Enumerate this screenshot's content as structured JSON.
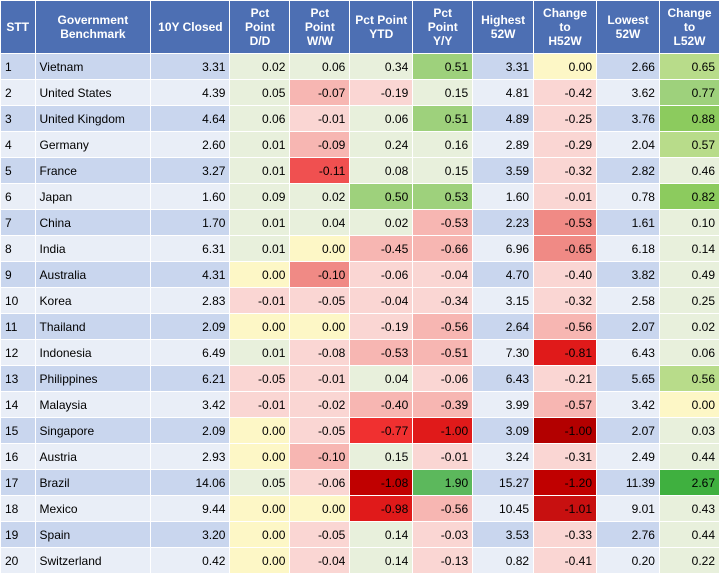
{
  "headers": [
    [
      "STT"
    ],
    [
      "Government",
      "Benchmark"
    ],
    [
      "10Y Closed"
    ],
    [
      "Pct",
      "Point",
      "D/D"
    ],
    [
      "Pct",
      "Point",
      "W/W"
    ],
    [
      "Pct Point",
      "YTD"
    ],
    [
      "Pct",
      "Point",
      "Y/Y"
    ],
    [
      "Highest",
      "52W"
    ],
    [
      "Change",
      "to",
      "H52W"
    ],
    [
      "Lowest",
      "52W"
    ],
    [
      "Change to",
      "L52W"
    ]
  ],
  "rows": [
    [
      "1",
      "Vietnam",
      "3.31",
      "0.02",
      "0.06",
      "0.34",
      "0.51",
      "3.31",
      "0.00",
      "2.66",
      "0.65"
    ],
    [
      "2",
      "United States",
      "4.39",
      "0.05",
      "-0.07",
      "-0.19",
      "0.15",
      "4.81",
      "-0.42",
      "3.62",
      "0.77"
    ],
    [
      "3",
      "United Kingdom",
      "4.64",
      "0.06",
      "-0.01",
      "0.06",
      "0.51",
      "4.89",
      "-0.25",
      "3.76",
      "0.88"
    ],
    [
      "4",
      "Germany",
      "2.60",
      "0.01",
      "-0.09",
      "0.24",
      "0.16",
      "2.89",
      "-0.29",
      "2.04",
      "0.57"
    ],
    [
      "5",
      "France",
      "3.27",
      "0.01",
      "-0.11",
      "0.08",
      "0.15",
      "3.59",
      "-0.32",
      "2.82",
      "0.46"
    ],
    [
      "6",
      "Japan",
      "1.60",
      "0.09",
      "0.02",
      "0.50",
      "0.53",
      "1.60",
      "-0.01",
      "0.78",
      "0.82"
    ],
    [
      "7",
      "China",
      "1.70",
      "0.01",
      "0.04",
      "0.02",
      "-0.53",
      "2.23",
      "-0.53",
      "1.61",
      "0.10"
    ],
    [
      "8",
      "India",
      "6.31",
      "0.01",
      "0.00",
      "-0.45",
      "-0.66",
      "6.96",
      "-0.65",
      "6.18",
      "0.14"
    ],
    [
      "9",
      "Australia",
      "4.31",
      "0.00",
      "-0.10",
      "-0.06",
      "-0.04",
      "4.70",
      "-0.40",
      "3.82",
      "0.49"
    ],
    [
      "10",
      "Korea",
      "2.83",
      "-0.01",
      "-0.05",
      "-0.04",
      "-0.34",
      "3.15",
      "-0.32",
      "2.58",
      "0.25"
    ],
    [
      "11",
      "Thailand",
      "2.09",
      "0.00",
      "0.00",
      "-0.19",
      "-0.56",
      "2.64",
      "-0.56",
      "2.07",
      "0.02"
    ],
    [
      "12",
      "Indonesia",
      "6.49",
      "0.01",
      "-0.08",
      "-0.53",
      "-0.51",
      "7.30",
      "-0.81",
      "6.43",
      "0.06"
    ],
    [
      "13",
      "Philippines",
      "6.21",
      "-0.05",
      "-0.01",
      "0.04",
      "-0.06",
      "6.43",
      "-0.21",
      "5.65",
      "0.56"
    ],
    [
      "14",
      "Malaysia",
      "3.42",
      "-0.01",
      "-0.02",
      "-0.40",
      "-0.39",
      "3.99",
      "-0.57",
      "3.42",
      "0.00"
    ],
    [
      "15",
      "Singapore",
      "2.09",
      "0.00",
      "-0.05",
      "-0.77",
      "-1.00",
      "3.09",
      "-1.00",
      "2.07",
      "0.03"
    ],
    [
      "16",
      "Austria",
      "2.93",
      "0.00",
      "-0.10",
      "0.15",
      "-0.01",
      "3.24",
      "-0.31",
      "2.49",
      "0.44"
    ],
    [
      "17",
      "Brazil",
      "14.06",
      "0.05",
      "-0.06",
      "-1.08",
      "1.90",
      "15.27",
      "-1.20",
      "11.39",
      "2.67"
    ],
    [
      "18",
      "Mexico",
      "9.44",
      "0.00",
      "0.00",
      "-0.98",
      "-0.56",
      "10.45",
      "-1.01",
      "9.01",
      "0.43"
    ],
    [
      "19",
      "Spain",
      "3.20",
      "0.00",
      "-0.05",
      "0.14",
      "-0.03",
      "3.53",
      "-0.33",
      "2.76",
      "0.44"
    ],
    [
      "20",
      "Switzerland",
      "0.42",
      "0.00",
      "-0.04",
      "0.14",
      "-0.13",
      "0.82",
      "-0.41",
      "0.20",
      "0.22"
    ]
  ],
  "cell_colors": [
    [
      "",
      "",
      "",
      "#e8f0dc",
      "#e8f0dc",
      "#e8f0dc",
      "#9ed17c",
      "",
      "#fdf7c6",
      "",
      "#b8dc8a"
    ],
    [
      "",
      "",
      "",
      "#e8f0dc",
      "#f7b6b2",
      "#fad6d3",
      "#e8f0dc",
      "",
      "#fad6d3",
      "",
      "#9ed17c"
    ],
    [
      "",
      "",
      "",
      "#e8f0dc",
      "#fad6d3",
      "#e8f0dc",
      "#9ed17c",
      "",
      "#fad6d3",
      "",
      "#8ccb5e"
    ],
    [
      "",
      "",
      "",
      "#e8f0dc",
      "#f7b6b2",
      "#e8f0dc",
      "#e8f0dc",
      "",
      "#fad6d3",
      "",
      "#b8dc8a"
    ],
    [
      "",
      "",
      "",
      "#e8f0dc",
      "#f05050",
      "#e8f0dc",
      "#e8f0dc",
      "",
      "#fad6d3",
      "",
      "#e8f0dc"
    ],
    [
      "",
      "",
      "",
      "#e8f0dc",
      "#e8f0dc",
      "#9ed17c",
      "#9ed17c",
      "",
      "#fad6d3",
      "",
      "#8ccb5e"
    ],
    [
      "",
      "",
      "",
      "#e8f0dc",
      "#e8f0dc",
      "#e8f0dc",
      "#f7b6b2",
      "",
      "#f08a85",
      "",
      "#e8f0dc"
    ],
    [
      "",
      "",
      "",
      "#e8f0dc",
      "#fdf7c6",
      "#f7b6b2",
      "#f7b6b2",
      "",
      "#f08a85",
      "",
      "#e8f0dc"
    ],
    [
      "",
      "",
      "",
      "#fdf7c6",
      "#f08a85",
      "#fad6d3",
      "#fad6d3",
      "",
      "#fad6d3",
      "",
      "#e8f0dc"
    ],
    [
      "",
      "",
      "",
      "#fad6d3",
      "#fad6d3",
      "#fad6d3",
      "#fad6d3",
      "",
      "#fad6d3",
      "",
      "#e8f0dc"
    ],
    [
      "",
      "",
      "",
      "#fdf7c6",
      "#fdf7c6",
      "#fad6d3",
      "#f7b6b2",
      "",
      "#f7b6b2",
      "",
      "#e8f0dc"
    ],
    [
      "",
      "",
      "",
      "#e8f0dc",
      "#fad6d3",
      "#f7b6b2",
      "#f7b6b2",
      "",
      "#e01a1a",
      "",
      "#e8f0dc"
    ],
    [
      "",
      "",
      "",
      "#fad6d3",
      "#fad6d3",
      "#e8f0dc",
      "#fad6d3",
      "",
      "#fad6d3",
      "",
      "#b8dc8a"
    ],
    [
      "",
      "",
      "",
      "#fad6d3",
      "#fad6d3",
      "#f7b6b2",
      "#f7b6b2",
      "",
      "#f7b6b2",
      "",
      "#fdf7c6"
    ],
    [
      "",
      "",
      "",
      "#fdf7c6",
      "#fad6d3",
      "#f03030",
      "#e01a1a",
      "",
      "#b30000",
      "",
      "#e8f0dc"
    ],
    [
      "",
      "",
      "",
      "#fdf7c6",
      "#f7b6b2",
      "#e8f0dc",
      "#fad6d3",
      "",
      "#fad6d3",
      "",
      "#e8f0dc"
    ],
    [
      "",
      "",
      "",
      "#e8f0dc",
      "#fad6d3",
      "#c00000",
      "#5cb85c",
      "",
      "#c00000",
      "",
      "#3fb03f"
    ],
    [
      "",
      "",
      "",
      "#fdf7c6",
      "#fdf7c6",
      "#e01a1a",
      "#f7b6b2",
      "",
      "#c81010",
      "",
      "#e8f0dc"
    ],
    [
      "",
      "",
      "",
      "#fdf7c6",
      "#fad6d3",
      "#e8f0dc",
      "#fad6d3",
      "",
      "#fad6d3",
      "",
      "#e8f0dc"
    ],
    [
      "",
      "",
      "",
      "#fdf7c6",
      "#fad6d3",
      "#e8f0dc",
      "#fad6d3",
      "",
      "#fad6d3",
      "",
      "#e8f0dc"
    ]
  ]
}
